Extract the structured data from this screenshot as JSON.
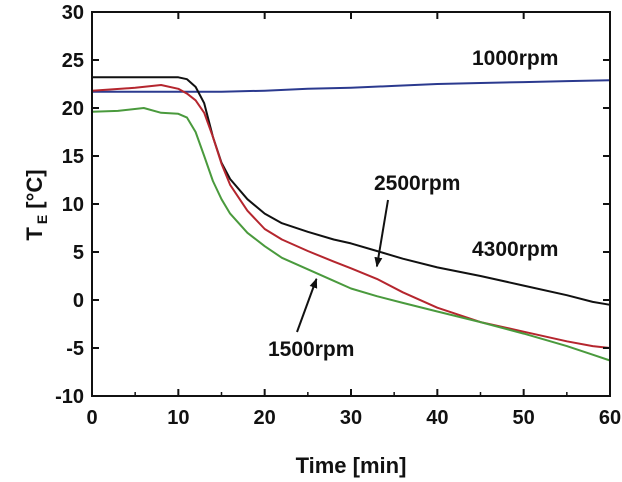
{
  "chart_data": {
    "type": "line",
    "title": "",
    "xlabel": "Time [min]",
    "ylabel": {
      "main": "T",
      "subscript": "E",
      "unit": " [°C]"
    },
    "xlim": [
      0,
      60
    ],
    "ylim": [
      -10,
      30
    ],
    "xticks": [
      0,
      10,
      20,
      30,
      40,
      50,
      60
    ],
    "yticks": [
      -10,
      -5,
      0,
      5,
      10,
      15,
      20,
      25,
      30
    ],
    "grid": false,
    "legend": "none",
    "series": [
      {
        "name": "1000rpm",
        "color": "#2b3a8f",
        "x": [
          0,
          5,
          10,
          15,
          20,
          25,
          30,
          35,
          40,
          45,
          50,
          55,
          60
        ],
        "y": [
          21.7,
          21.7,
          21.7,
          21.7,
          21.8,
          22.0,
          22.1,
          22.3,
          22.5,
          22.6,
          22.7,
          22.8,
          22.9
        ]
      },
      {
        "name": "4300rpm",
        "color": "#111111",
        "x": [
          0,
          5,
          10,
          11,
          12,
          13,
          14,
          15,
          16,
          18,
          20,
          22,
          25,
          28,
          30,
          33,
          36,
          40,
          45,
          50,
          55,
          58,
          60
        ],
        "y": [
          23.2,
          23.2,
          23.2,
          23.0,
          22.2,
          20.5,
          17.0,
          14.3,
          12.6,
          10.5,
          9.0,
          8.0,
          7.1,
          6.3,
          5.9,
          5.1,
          4.3,
          3.4,
          2.5,
          1.5,
          0.5,
          -0.2,
          -0.5
        ]
      },
      {
        "name": "2500rpm",
        "color": "#b5262e",
        "x": [
          0,
          5,
          8,
          10,
          11,
          12,
          13,
          14,
          15,
          16,
          18,
          20,
          22,
          25,
          28,
          30,
          33,
          36,
          40,
          45,
          50,
          55,
          58,
          60
        ],
        "y": [
          21.8,
          22.1,
          22.4,
          22.0,
          21.5,
          20.8,
          19.5,
          17.0,
          14.2,
          12.0,
          9.3,
          7.4,
          6.3,
          5.1,
          4.0,
          3.3,
          2.2,
          0.8,
          -0.8,
          -2.3,
          -3.3,
          -4.3,
          -4.8,
          -5.0
        ]
      },
      {
        "name": "1500rpm",
        "color": "#4a9a3d",
        "x": [
          0,
          3,
          6,
          8,
          10,
          11,
          12,
          13,
          14,
          15,
          16,
          18,
          20,
          22,
          25,
          28,
          30,
          33,
          36,
          40,
          45,
          50,
          55,
          58,
          60
        ],
        "y": [
          19.6,
          19.7,
          20.0,
          19.5,
          19.4,
          19.0,
          17.5,
          15.0,
          12.4,
          10.5,
          9.0,
          7.0,
          5.6,
          4.4,
          3.2,
          2.0,
          1.2,
          0.4,
          -0.3,
          -1.2,
          -2.3,
          -3.5,
          -4.8,
          -5.7,
          -6.3
        ]
      }
    ],
    "annotations": [
      {
        "text": "1000rpm",
        "series": "1000rpm"
      },
      {
        "text": "4300rpm",
        "series": "4300rpm"
      },
      {
        "text": "2500rpm",
        "series": "2500rpm",
        "arrow_to": {
          "x": 33,
          "y": 3.5
        }
      },
      {
        "text": "1500rpm",
        "series": "1500rpm",
        "arrow_to": {
          "x": 26,
          "y": 2.2
        }
      }
    ]
  }
}
